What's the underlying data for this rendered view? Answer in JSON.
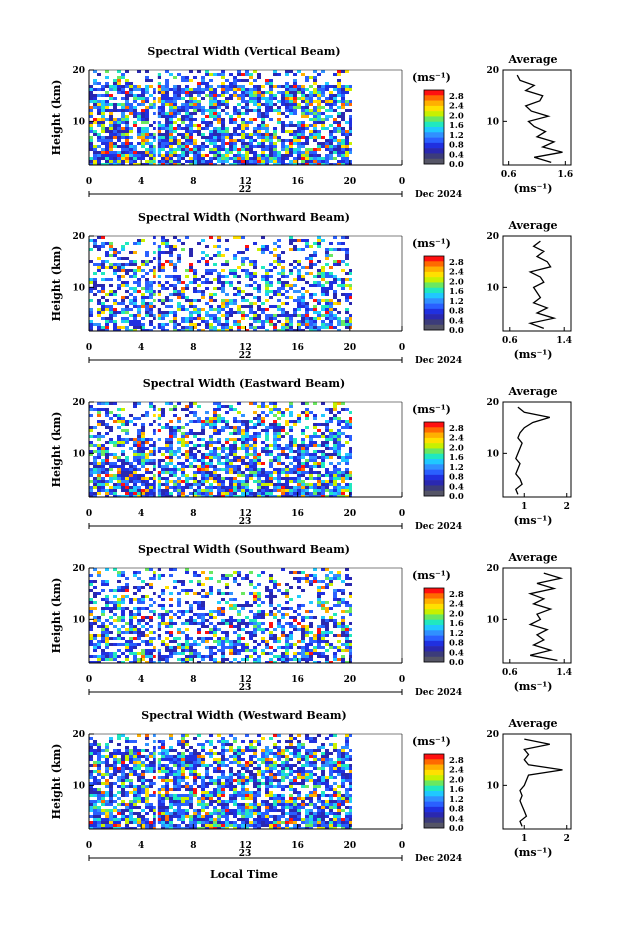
{
  "footer": {
    "xlabel": "Local Time"
  },
  "colorbar": {
    "unit": "(ms⁻¹)",
    "ticks": [
      "2.8",
      "2.4",
      "2.0",
      "1.6",
      "1.2",
      "0.8",
      "0.4",
      "0.0"
    ],
    "colors": [
      "#ff1010",
      "#ff6a00",
      "#ffb000",
      "#ffe000",
      "#c8f000",
      "#6ae860",
      "#20e8c0",
      "#20c8ff",
      "#3090ff",
      "#2a60ff",
      "#2030e0",
      "#2a28b0",
      "#3c3c7a",
      "#555566"
    ]
  },
  "chart_data": [
    {
      "type": "heatmap",
      "title": "Spectral Width (Vertical Beam)",
      "ylabel": "Height (km)",
      "ylim": [
        1.5,
        20
      ],
      "yticks": [
        "20",
        "10"
      ],
      "xlim": [
        0,
        24
      ],
      "xticks": [
        "0",
        "4",
        "8",
        "12",
        "16",
        "20",
        "0"
      ],
      "date_labels": [
        "22"
      ],
      "month_label": "Dec 2024",
      "colorbar_unit": "(ms⁻¹)",
      "average_profile": {
        "title": "Average",
        "xlabel": "(ms⁻¹)",
        "xticks": [
          "0.6",
          "1.6"
        ],
        "yticks": [
          "20",
          "10"
        ],
        "xlim": [
          0.5,
          1.7
        ],
        "height_km": [
          2,
          3,
          4,
          5,
          6,
          7,
          8,
          9,
          10,
          11,
          12,
          13,
          14,
          15,
          16,
          17,
          18,
          19
        ],
        "values": [
          1.35,
          1.05,
          1.55,
          1.2,
          1.4,
          1.1,
          1.25,
          1.05,
          0.95,
          1.3,
          1.0,
          0.9,
          1.15,
          1.2,
          0.9,
          1.05,
          0.8,
          0.75
        ]
      }
    },
    {
      "type": "heatmap",
      "title": "Spectral Width (Northward Beam)",
      "ylabel": "Height (km)",
      "ylim": [
        1.5,
        20
      ],
      "yticks": [
        "20",
        "10"
      ],
      "xlim": [
        0,
        24
      ],
      "xticks": [
        "0",
        "4",
        "8",
        "12",
        "16",
        "20",
        "0"
      ],
      "date_labels": [
        "22"
      ],
      "month_label": "Dec 2024",
      "colorbar_unit": "(ms⁻¹)",
      "average_profile": {
        "title": "Average",
        "xlabel": "(ms⁻¹)",
        "xticks": [
          "0.6",
          "1.4"
        ],
        "yticks": [
          "20",
          "10"
        ],
        "xlim": [
          0.5,
          1.5
        ],
        "height_km": [
          2,
          3,
          4,
          5,
          6,
          7,
          8,
          9,
          10,
          11,
          12,
          13,
          14,
          15,
          16,
          17,
          18,
          19
        ],
        "values": [
          1.1,
          0.9,
          1.25,
          1.0,
          1.15,
          0.95,
          1.05,
          1.0,
          0.95,
          1.1,
          1.05,
          0.9,
          1.2,
          1.15,
          1.0,
          1.1,
          0.95,
          1.05
        ]
      }
    },
    {
      "type": "heatmap",
      "title": "Spectral Width (Eastward Beam)",
      "ylabel": "Height (km)",
      "ylim": [
        1.5,
        20
      ],
      "yticks": [
        "20",
        "10"
      ],
      "xlim": [
        0,
        24
      ],
      "xticks": [
        "0",
        "4",
        "8",
        "12",
        "16",
        "20",
        "0"
      ],
      "date_labels": [
        "23"
      ],
      "month_label": "Dec 2024",
      "colorbar_unit": "(ms⁻¹)",
      "average_profile": {
        "title": "Average",
        "xlabel": "(ms⁻¹)",
        "xticks": [
          "1",
          "2"
        ],
        "yticks": [
          "20",
          "10"
        ],
        "xlim": [
          0.5,
          2.1
        ],
        "height_km": [
          2,
          3,
          4,
          5,
          6,
          7,
          8,
          9,
          10,
          11,
          12,
          13,
          14,
          15,
          16,
          17,
          18,
          19
        ],
        "values": [
          0.85,
          0.8,
          0.95,
          0.9,
          0.8,
          0.85,
          0.9,
          0.8,
          0.85,
          0.9,
          0.95,
          0.85,
          0.9,
          1.0,
          1.2,
          1.6,
          1.0,
          0.85
        ]
      }
    },
    {
      "type": "heatmap",
      "title": "Spectral Width (Southward Beam)",
      "ylabel": "Height (km)",
      "ylim": [
        1.5,
        20
      ],
      "yticks": [
        "20",
        "10"
      ],
      "xlim": [
        0,
        24
      ],
      "xticks": [
        "0",
        "4",
        "8",
        "12",
        "16",
        "20",
        "0"
      ],
      "date_labels": [
        "23"
      ],
      "month_label": "Dec 2024",
      "colorbar_unit": "(ms⁻¹)",
      "average_profile": {
        "title": "Average",
        "xlabel": "(ms⁻¹)",
        "xticks": [
          "0.6",
          "1.4"
        ],
        "yticks": [
          "20",
          "10"
        ],
        "xlim": [
          0.5,
          1.5
        ],
        "height_km": [
          2,
          3,
          4,
          5,
          6,
          7,
          8,
          9,
          10,
          11,
          12,
          13,
          14,
          15,
          16,
          17,
          18,
          19
        ],
        "values": [
          1.3,
          0.9,
          1.2,
          0.95,
          1.1,
          1.0,
          1.15,
          0.9,
          1.05,
          1.0,
          1.2,
          0.95,
          1.1,
          0.9,
          1.25,
          1.0,
          1.35,
          1.1
        ]
      }
    },
    {
      "type": "heatmap",
      "title": "Spectral Width (Westward Beam)",
      "ylabel": "Height (km)",
      "ylim": [
        1.5,
        20
      ],
      "yticks": [
        "20",
        "10"
      ],
      "xlim": [
        0,
        24
      ],
      "xticks": [
        "0",
        "4",
        "8",
        "12",
        "16",
        "20",
        "0"
      ],
      "date_labels": [
        "23"
      ],
      "month_label": "Dec 2024",
      "colorbar_unit": "(ms⁻¹)",
      "average_profile": {
        "title": "Average",
        "xlabel": "(ms⁻¹)",
        "xticks": [
          "1",
          "2"
        ],
        "yticks": [
          "20",
          "10"
        ],
        "xlim": [
          0.5,
          2.1
        ],
        "height_km": [
          2,
          3,
          4,
          5,
          6,
          7,
          8,
          9,
          10,
          11,
          12,
          13,
          14,
          15,
          16,
          17,
          18,
          19
        ],
        "values": [
          0.95,
          0.9,
          1.05,
          1.0,
          0.95,
          0.9,
          0.95,
          0.9,
          1.0,
          1.05,
          1.1,
          1.9,
          1.1,
          1.0,
          1.1,
          1.0,
          1.6,
          1.0
        ]
      }
    }
  ]
}
